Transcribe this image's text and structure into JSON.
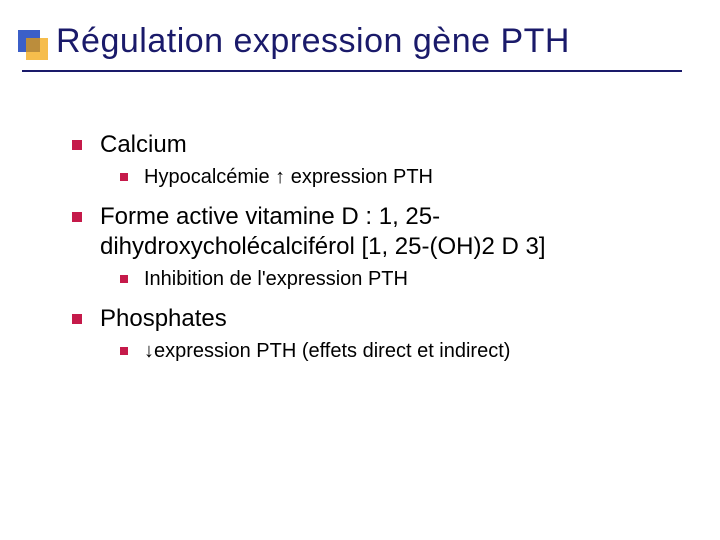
{
  "title": "Régulation expression gène PTH",
  "accent": {
    "blue": "#3b5fc8",
    "orange": "#f2a100"
  },
  "bullet_color": "#c51a4a",
  "title_color": "#1a1a6a",
  "items": {
    "i1": {
      "label": "Calcium"
    },
    "i1_1": {
      "label": "Hypocalcémie ↑ expression PTH"
    },
    "i2": {
      "label": "Forme active vitamine D : 1, 25-dihydroxycholécalciférol [1, 25-(OH)2 D 3]"
    },
    "i2_1": {
      "label": "Inhibition de l'expression PTH"
    },
    "i3": {
      "label": "Phosphates"
    },
    "i3_1": {
      "label": "↓expression PTH (effets direct et indirect)"
    }
  }
}
